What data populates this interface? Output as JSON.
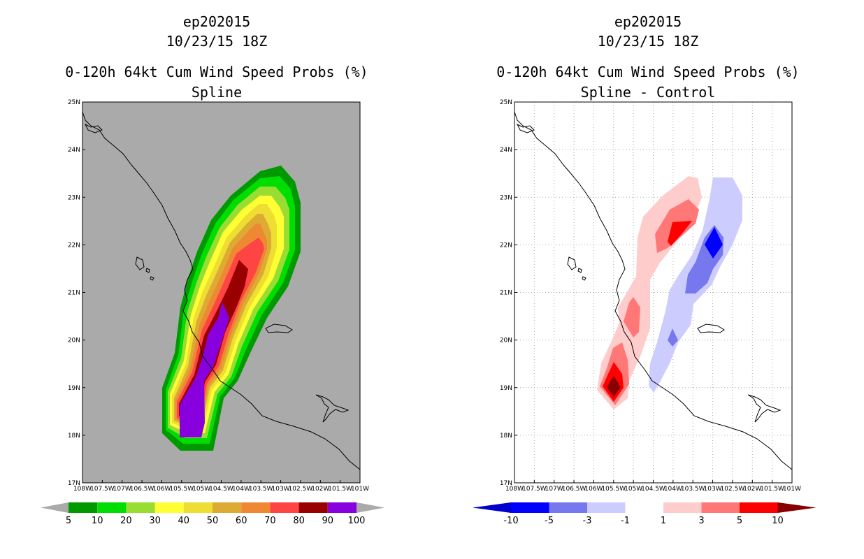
{
  "chart_data": [
    {
      "type": "heatmap",
      "storm_id": "ep202015",
      "valid_time": "10/23/15 18Z",
      "title": "0-120h 64kt Cum Wind Speed Probs (%)",
      "subtitle": "Spline",
      "lat_ticks": [
        "17N",
        "18N",
        "19N",
        "20N",
        "21N",
        "22N",
        "23N",
        "24N",
        "25N"
      ],
      "lon_ticks": [
        "108W",
        "107.5W",
        "107W",
        "106.5W",
        "106W",
        "105.5W",
        "105W",
        "104.5W",
        "104W",
        "103.5W",
        "103W",
        "102.5W",
        "102W",
        "101.5W",
        "101W"
      ],
      "xlim": [
        -108,
        -101
      ],
      "ylim": [
        17,
        25
      ],
      "background_color": "#aaaaaa",
      "colorbar": {
        "labels": [
          "5",
          "10",
          "20",
          "30",
          "40",
          "50",
          "60",
          "70",
          "80",
          "90",
          "100"
        ],
        "colors": [
          "#009900",
          "#00dd00",
          "#99dd33",
          "#ffff33",
          "#eedd33",
          "#ddaa33",
          "#ee8833",
          "#ff4444",
          "#990000",
          "#8800dd"
        ]
      },
      "contour_levels": [
        {
          "level": 5,
          "color": "#009900"
        },
        {
          "level": 10,
          "color": "#00dd00"
        },
        {
          "level": 20,
          "color": "#99dd33"
        },
        {
          "level": 30,
          "color": "#ffff33"
        },
        {
          "level": 40,
          "color": "#eedd33"
        },
        {
          "level": 50,
          "color": "#ddaa33"
        },
        {
          "level": 60,
          "color": "#ee8833"
        },
        {
          "level": 70,
          "color": "#ff4444"
        },
        {
          "level": 80,
          "color": "#990000"
        },
        {
          "level": 90,
          "color": "#8800dd"
        }
      ]
    },
    {
      "type": "heatmap",
      "storm_id": "ep202015",
      "valid_time": "10/23/15 18Z",
      "title": "0-120h 64kt Cum Wind Speed Probs (%)",
      "subtitle": "Spline - Control",
      "lat_ticks": [
        "17N",
        "18N",
        "19N",
        "20N",
        "21N",
        "22N",
        "23N",
        "24N",
        "25N"
      ],
      "lon_ticks": [
        "108W",
        "107.5W",
        "107W",
        "106.5W",
        "106W",
        "105.5W",
        "105W",
        "104.5W",
        "104W",
        "103.5W",
        "103W",
        "102.5W",
        "102W",
        "101.5W",
        "101W"
      ],
      "xlim": [
        -108,
        -101
      ],
      "ylim": [
        17,
        25
      ],
      "grid": true,
      "colorbar": {
        "labels": [
          "-10",
          "-5",
          "-3",
          "-1",
          "1",
          "3",
          "5",
          "10"
        ],
        "colors": [
          "#0000cc",
          "#0000ff",
          "#7777ee",
          "#ccccff",
          "#ffffff",
          "#ffcccc",
          "#ff7777",
          "#ff0000",
          "#880000"
        ]
      },
      "features": [
        {
          "sign": "positive",
          "peak": "10",
          "region": "near 19N 105.5W"
        },
        {
          "sign": "positive",
          "peak": "5",
          "region": "near 20.5N 105W"
        },
        {
          "sign": "positive",
          "peak": "5",
          "region": "near 22.2N 104W"
        },
        {
          "sign": "negative",
          "peak": "-5",
          "region": "near 22N 103W"
        },
        {
          "sign": "negative",
          "peak": "-3",
          "region": "near 21.2N 103.5W"
        },
        {
          "sign": "negative",
          "peak": "-3",
          "region": "near 20N 104W"
        }
      ]
    }
  ]
}
